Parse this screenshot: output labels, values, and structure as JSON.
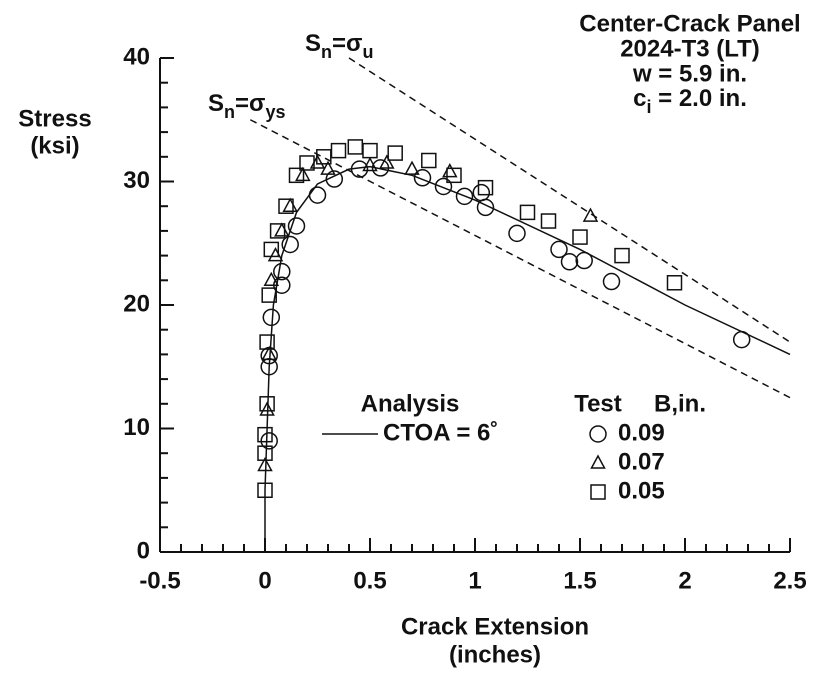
{
  "chart_data": {
    "type": "scatter",
    "title": [
      "Center-Crack Panel",
      "2024-T3 (LT)",
      "w = 5.9 in."
    ],
    "title_sub_line": {
      "parts": [
        "c",
        "i",
        " = 2.0 in."
      ],
      "sub": [
        false,
        true,
        false
      ]
    },
    "ylabel": [
      "Stress",
      "(ksi)"
    ],
    "xlabel": [
      "Crack Extension",
      "(inches)"
    ],
    "xlim": [
      -0.5,
      2.5
    ],
    "ylim": [
      0,
      40
    ],
    "xticks": [
      -0.5,
      0,
      0.5,
      1,
      1.5,
      2,
      2.5
    ],
    "yticks": [
      0,
      10,
      20,
      30,
      40
    ],
    "minor_xticks": [
      -0.4,
      -0.3,
      -0.2,
      -0.1,
      0.1,
      0.2,
      0.3,
      0.4,
      0.6,
      0.7,
      0.8,
      0.9,
      1.1,
      1.2,
      1.3,
      1.4,
      1.6,
      1.7,
      1.8,
      1.9,
      2.1,
      2.2,
      2.3,
      2.4
    ],
    "minor_yticks": [
      2,
      4,
      6,
      8,
      12,
      14,
      16,
      18,
      22,
      24,
      26,
      28,
      32,
      34,
      36,
      38
    ],
    "legend_headers": {
      "analysis": "Analysis",
      "test": "Test",
      "thickness": "B,in."
    },
    "series": [
      {
        "name": "CTOA = 6˚",
        "kind": "line",
        "color": "#111",
        "x": [
          0,
          0,
          0.01,
          0.02,
          0.04,
          0.08,
          0.15,
          0.25,
          0.4,
          0.5,
          0.7,
          1,
          1.5,
          2,
          2.5
        ],
        "values": [
          0,
          5,
          10,
          15,
          20,
          24,
          27.5,
          29.8,
          31,
          31.2,
          30.5,
          28.5,
          24.5,
          20,
          16
        ]
      },
      {
        "name": "0.09",
        "kind": "marker",
        "marker": "circle",
        "color": "#111",
        "x": [
          0.02,
          0.02,
          0.02,
          0.03,
          0.08,
          0.08,
          0.12,
          0.15,
          0.25,
          0.33,
          0.45,
          0.55,
          0.75,
          0.85,
          0.95,
          1.05,
          1.03,
          1.2,
          1.4,
          1.45,
          1.52,
          1.65,
          2.27
        ],
        "values": [
          9,
          15,
          15.9,
          19,
          21.6,
          22.7,
          24.9,
          26.4,
          28.9,
          30.2,
          31,
          31.1,
          30.3,
          29.6,
          28.8,
          27.9,
          29.1,
          25.8,
          24.5,
          23.5,
          23.6,
          21.9,
          17.2
        ]
      },
      {
        "name": "0.07",
        "kind": "marker",
        "marker": "triangle",
        "color": "#111",
        "x": [
          0,
          0.01,
          0.02,
          0.03,
          0.05,
          0.08,
          0.12,
          0.18,
          0.25,
          0.3,
          0.5,
          0.58,
          0.7,
          0.88,
          1.55
        ],
        "values": [
          7,
          11.5,
          16,
          22,
          24,
          26,
          28,
          30.5,
          31.5,
          31,
          31.3,
          31.5,
          31,
          30.8,
          27.2
        ]
      },
      {
        "name": "0.05",
        "kind": "marker",
        "marker": "square",
        "color": "#111",
        "x": [
          0,
          0,
          0,
          0.01,
          0.01,
          0.02,
          0.03,
          0.06,
          0.1,
          0.15,
          0.2,
          0.28,
          0.35,
          0.43,
          0.5,
          0.62,
          0.78,
          0.9,
          1.05,
          1.25,
          1.35,
          1.5,
          1.7,
          1.95
        ],
        "values": [
          5,
          8,
          9.5,
          12,
          17,
          20.8,
          24.5,
          26,
          28,
          30.5,
          31.5,
          32,
          32.5,
          32.8,
          32.5,
          32.3,
          31.7,
          30.5,
          29.5,
          27.5,
          26.8,
          25.5,
          24,
          21.8
        ]
      }
    ],
    "reference_lines": [
      {
        "parts": [
          "S",
          "n",
          "=σ",
          "u"
        ],
        "sub": [
          false,
          true,
          false,
          true
        ],
        "dashed": true,
        "x": [
          0.4,
          2.5
        ],
        "values": [
          40,
          17
        ]
      },
      {
        "parts": [
          "S",
          "n",
          "=σ",
          "ys"
        ],
        "sub": [
          false,
          true,
          false,
          true
        ],
        "dashed": true,
        "x": [
          -0.07,
          2.5
        ],
        "values": [
          35,
          12.5
        ]
      }
    ]
  }
}
